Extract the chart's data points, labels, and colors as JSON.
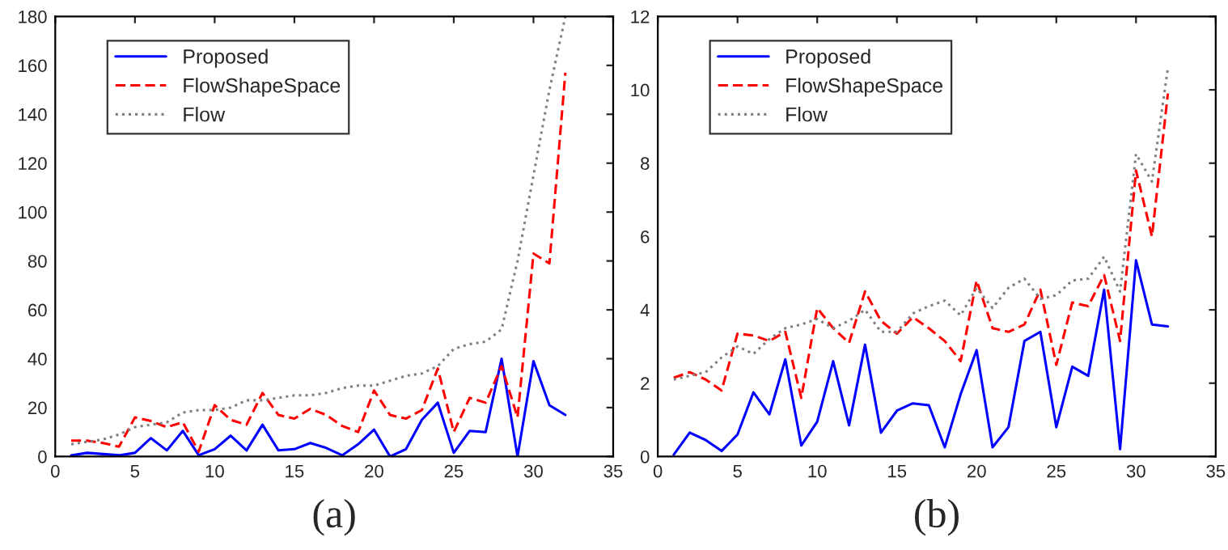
{
  "chart_data": [
    {
      "type": "line",
      "xlabel": "(a)",
      "x": [
        1,
        2,
        3,
        4,
        5,
        6,
        7,
        8,
        9,
        10,
        11,
        12,
        13,
        14,
        15,
        16,
        17,
        18,
        19,
        20,
        21,
        22,
        23,
        24,
        25,
        26,
        27,
        28,
        29,
        30,
        31,
        32
      ],
      "series": [
        {
          "name": "Proposed",
          "color": "#0000ff",
          "line_style": "solid",
          "values": [
            0.5,
            1.5,
            1,
            0.5,
            1.5,
            7.5,
            2.5,
            10.5,
            0.5,
            3,
            8.5,
            2.5,
            13,
            2.5,
            3,
            5.5,
            3.5,
            0.5,
            5,
            11,
            0,
            3,
            15,
            22,
            1.5,
            10.5,
            10,
            40,
            0,
            39,
            21,
            17
          ]
        },
        {
          "name": "FlowShapeSpace",
          "color": "#ff0000",
          "line_style": "dashed",
          "values": [
            6.5,
            6.5,
            5.5,
            4,
            16,
            14.5,
            12,
            14,
            2,
            21,
            15,
            13,
            26,
            17,
            15.5,
            19.5,
            17,
            12.5,
            10,
            27,
            17,
            15.5,
            19,
            36,
            10,
            24,
            22,
            37,
            16,
            83,
            79,
            157
          ]
        },
        {
          "name": "Flow",
          "color": "#808080",
          "line_style": "dotted",
          "values": [
            5,
            6,
            7,
            9,
            12,
            13,
            14,
            18,
            19,
            19,
            20,
            23,
            23,
            24,
            25,
            25,
            26,
            28,
            29,
            29,
            31,
            33,
            34,
            37,
            44,
            46,
            47,
            52,
            80,
            115,
            150,
            180
          ]
        }
      ],
      "xlim": [
        0,
        35
      ],
      "xticks": [
        0,
        5,
        10,
        15,
        20,
        25,
        30,
        35
      ],
      "ylim": [
        0,
        180
      ],
      "yticks": [
        0,
        20,
        40,
        60,
        80,
        100,
        120,
        140,
        160,
        180
      ],
      "grid": false,
      "legend": "top left"
    },
    {
      "type": "line",
      "xlabel": "(b)",
      "x": [
        1,
        2,
        3,
        4,
        5,
        6,
        7,
        8,
        9,
        10,
        11,
        12,
        13,
        14,
        15,
        16,
        17,
        18,
        19,
        20,
        21,
        22,
        23,
        24,
        25,
        26,
        27,
        28,
        29,
        30,
        31,
        32
      ],
      "series": [
        {
          "name": "Proposed",
          "color": "#0000ff",
          "line_style": "solid",
          "values": [
            0.05,
            0.65,
            0.45,
            0.15,
            0.6,
            1.75,
            1.15,
            2.65,
            0.3,
            0.95,
            2.6,
            0.85,
            3.05,
            0.65,
            1.25,
            1.45,
            1.4,
            0.25,
            1.7,
            2.9,
            0.25,
            0.8,
            3.15,
            3.4,
            0.8,
            2.45,
            2.2,
            4.55,
            0.2,
            5.35,
            3.6,
            3.55
          ]
        },
        {
          "name": "FlowShapeSpace",
          "color": "#ff0000",
          "line_style": "dashed",
          "values": [
            2.15,
            2.3,
            2.1,
            1.8,
            3.35,
            3.3,
            3.15,
            3.4,
            1.6,
            4.05,
            3.5,
            3.1,
            4.5,
            3.7,
            3.35,
            3.8,
            3.5,
            3.15,
            2.6,
            4.8,
            3.5,
            3.4,
            3.6,
            4.55,
            2.5,
            4.2,
            4.1,
            4.95,
            3.15,
            7.8,
            6,
            9.9
          ]
        },
        {
          "name": "Flow",
          "color": "#808080",
          "line_style": "dotted",
          "values": [
            2.1,
            2.2,
            2.3,
            2.7,
            3,
            2.8,
            3.2,
            3.5,
            3.6,
            3.75,
            3.5,
            3.7,
            4,
            3.4,
            3.4,
            3.9,
            4.1,
            4.25,
            3.85,
            4.6,
            4.05,
            4.6,
            4.85,
            4.3,
            4.4,
            4.8,
            4.85,
            5.45,
            4.5,
            8.25,
            7.5,
            10.6
          ]
        }
      ],
      "xlim": [
        0,
        35
      ],
      "xticks": [
        0,
        5,
        10,
        15,
        20,
        25,
        30,
        35
      ],
      "ylim": [
        0,
        12
      ],
      "yticks": [
        0,
        2,
        4,
        6,
        8,
        10,
        12
      ],
      "grid": false,
      "legend": "top left"
    }
  ]
}
